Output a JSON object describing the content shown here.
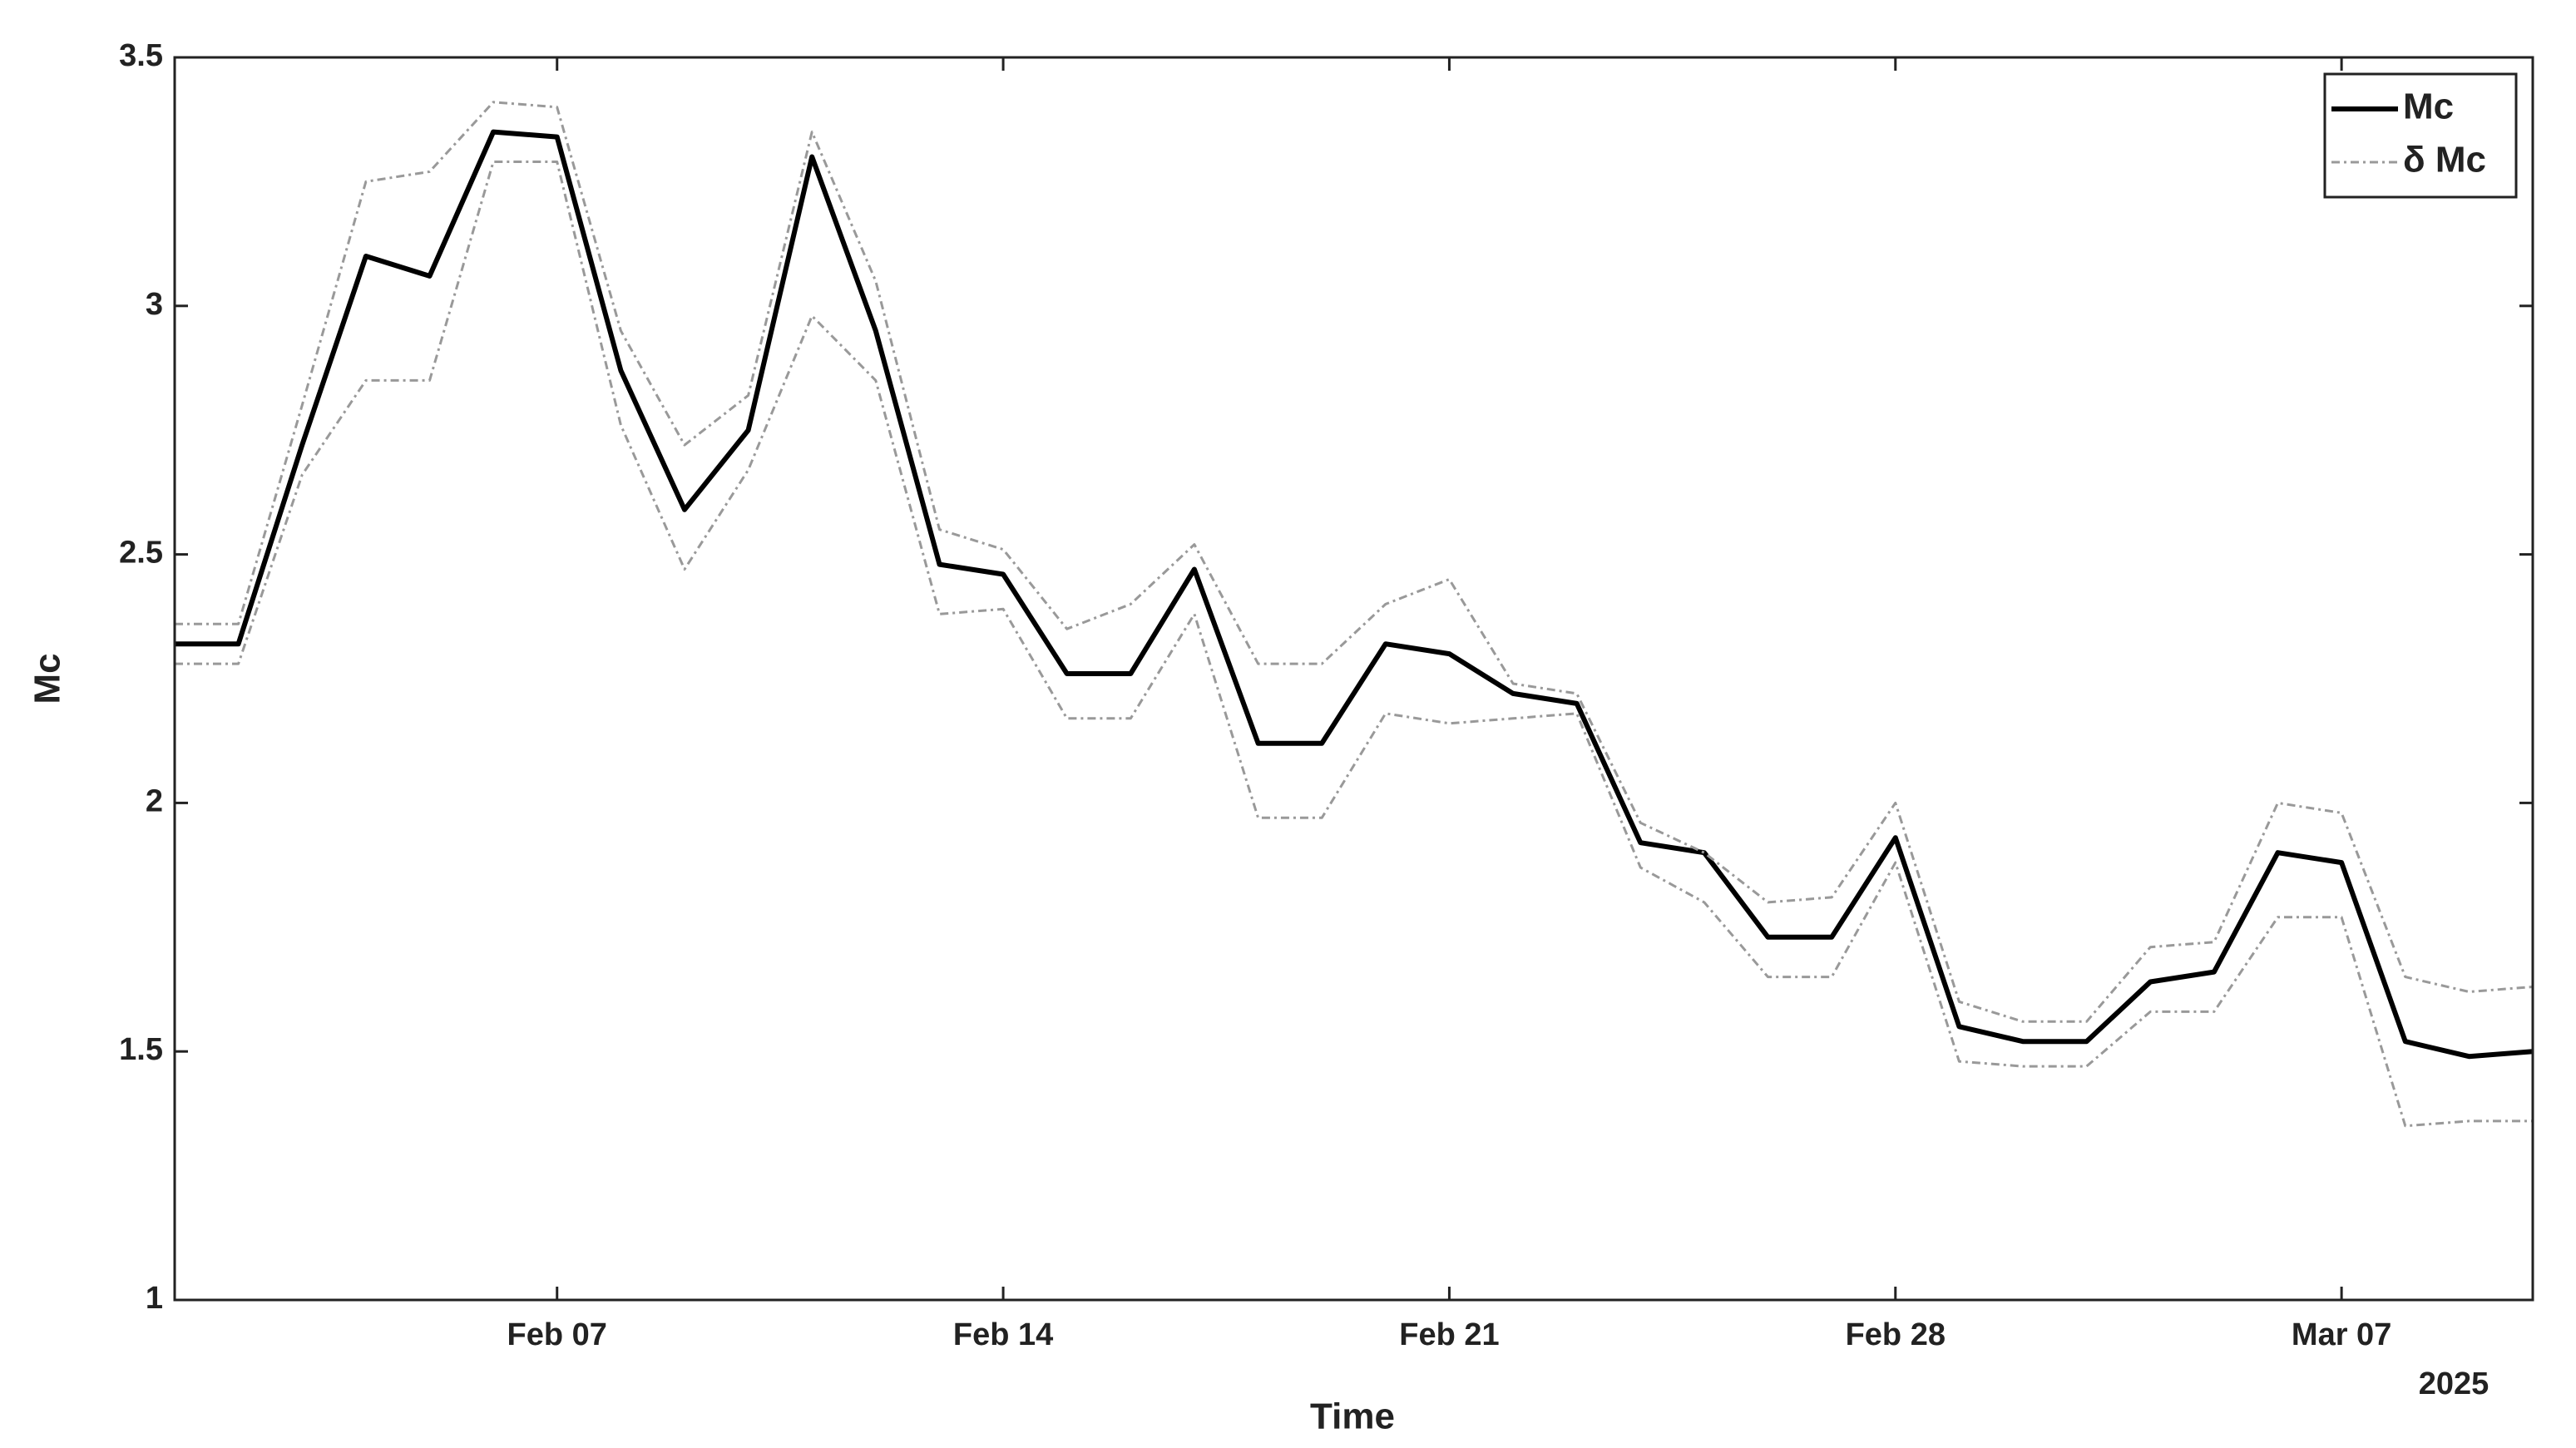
{
  "chart_data": {
    "type": "line",
    "xlabel": "Time",
    "ylabel": "Mc",
    "x_secondary_label": "2025",
    "x": [
      "2025-02-01",
      "2025-02-02",
      "2025-02-03",
      "2025-02-04",
      "2025-02-05",
      "2025-02-06",
      "2025-02-07",
      "2025-02-08",
      "2025-02-09",
      "2025-02-10",
      "2025-02-11",
      "2025-02-12",
      "2025-02-13",
      "2025-02-14",
      "2025-02-15",
      "2025-02-16",
      "2025-02-17",
      "2025-02-18",
      "2025-02-19",
      "2025-02-20",
      "2025-02-21",
      "2025-02-22",
      "2025-02-23",
      "2025-02-24",
      "2025-02-25",
      "2025-02-26",
      "2025-02-27",
      "2025-02-28",
      "2025-03-01",
      "2025-03-02",
      "2025-03-03",
      "2025-03-04",
      "2025-03-05",
      "2025-03-06",
      "2025-03-07",
      "2025-03-08",
      "2025-03-09",
      "2025-03-10"
    ],
    "series": [
      {
        "name": "Mc",
        "color": "#000000",
        "dashed": false,
        "values": [
          2.32,
          2.32,
          2.72,
          3.1,
          3.06,
          3.35,
          3.34,
          2.87,
          2.59,
          2.75,
          3.3,
          2.95,
          2.48,
          2.46,
          2.26,
          2.26,
          2.47,
          2.12,
          2.12,
          2.32,
          2.3,
          2.22,
          2.2,
          1.92,
          1.9,
          1.73,
          1.73,
          1.93,
          1.55,
          1.52,
          1.52,
          1.64,
          1.66,
          1.9,
          1.88,
          1.52,
          1.49,
          1.5
        ]
      },
      {
        "name": "δ Mc",
        "color": "#999999",
        "dashed": true,
        "values": [
          2.36,
          2.36,
          2.8,
          3.25,
          3.27,
          3.41,
          3.4,
          2.95,
          2.72,
          2.82,
          3.35,
          3.05,
          2.55,
          2.51,
          2.35,
          2.4,
          2.52,
          2.28,
          2.28,
          2.4,
          2.45,
          2.24,
          2.22,
          1.96,
          1.9,
          1.8,
          1.81,
          2.0,
          1.6,
          1.56,
          1.56,
          1.71,
          1.72,
          2.0,
          1.98,
          1.65,
          1.62,
          1.63
        ]
      },
      {
        "color": "#999999",
        "dashed": true,
        "values": [
          2.28,
          2.28,
          2.66,
          2.85,
          2.85,
          3.29,
          3.29,
          2.76,
          2.47,
          2.67,
          2.98,
          2.85,
          2.38,
          2.39,
          2.17,
          2.17,
          2.38,
          1.97,
          1.97,
          2.18,
          2.16,
          2.17,
          2.18,
          1.87,
          1.8,
          1.65,
          1.65,
          1.88,
          1.48,
          1.47,
          1.47,
          1.58,
          1.58,
          1.77,
          1.77,
          1.35,
          1.36,
          1.36
        ]
      }
    ],
    "xlim": [
      "2025-02-01",
      "2025-03-10"
    ],
    "xticks": [
      {
        "value": "2025-02-07",
        "label": "Feb 07"
      },
      {
        "value": "2025-02-14",
        "label": "Feb 14"
      },
      {
        "value": "2025-02-21",
        "label": "Feb 21"
      },
      {
        "value": "2025-02-28",
        "label": "Feb 28"
      },
      {
        "value": "2025-03-07",
        "label": "Mar 07"
      }
    ],
    "ylim": [
      1,
      3.5
    ],
    "yticks": [
      1,
      1.5,
      2,
      2.5,
      3,
      3.5
    ],
    "grid": false,
    "legend": "upper right"
  }
}
